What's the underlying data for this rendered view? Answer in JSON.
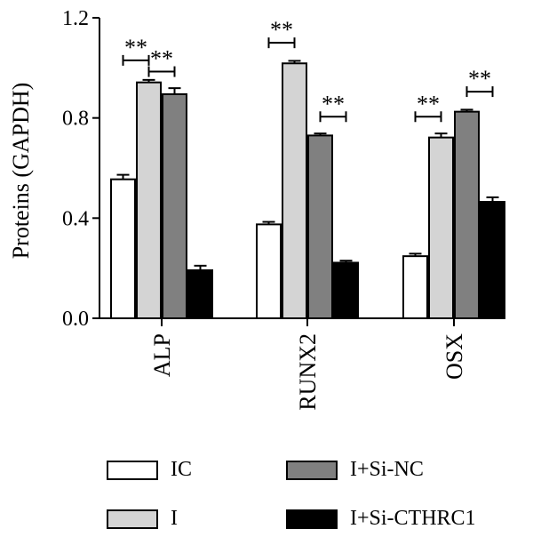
{
  "chart_data": {
    "type": "bar",
    "title": "",
    "xlabel": "",
    "ylabel": "Proteins (GAPDH)",
    "ylim": [
      0,
      1.2
    ],
    "yticks": [
      "0.0",
      "0.4",
      "0.8",
      "1.2"
    ],
    "ytick_values": [
      0,
      0.4,
      0.8,
      1.2
    ],
    "categories": [
      "ALP",
      "RUNX2",
      "OSX"
    ],
    "series": [
      {
        "name": "IC",
        "color": "#ffffff",
        "values": [
          0.555,
          0.375,
          0.248
        ],
        "errors": [
          0.018,
          0.01,
          0.01
        ]
      },
      {
        "name": "I",
        "color": "#d4d4d4",
        "values": [
          0.942,
          1.018,
          0.722
        ],
        "errors": [
          0.01,
          0.01,
          0.016
        ]
      },
      {
        "name": "I+Si-NC",
        "color": "#808080",
        "values": [
          0.895,
          0.73,
          0.825
        ],
        "errors": [
          0.024,
          0.008,
          0.008
        ]
      },
      {
        "name": "I+Si-CTHRC1",
        "color": "#000000",
        "values": [
          0.192,
          0.222,
          0.465
        ],
        "errors": [
          0.018,
          0.008,
          0.018
        ]
      }
    ],
    "annotations": [
      {
        "category": 0,
        "from_series": 0,
        "to_series": 1,
        "text": "**",
        "y": 1.03
      },
      {
        "category": 0,
        "from_series": 1,
        "to_series": 2,
        "text": "**",
        "y": 0.985
      },
      {
        "category": 1,
        "from_series": 0,
        "to_series": 1,
        "text": "**",
        "y": 1.1
      },
      {
        "category": 1,
        "from_series": 2,
        "to_series": 3,
        "text": "**",
        "y": 0.805
      },
      {
        "category": 2,
        "from_series": 0,
        "to_series": 1,
        "text": "**",
        "y": 0.805
      },
      {
        "category": 2,
        "from_series": 2,
        "to_series": 3,
        "text": "**",
        "y": 0.905
      }
    ],
    "legend_position": "bottom"
  }
}
